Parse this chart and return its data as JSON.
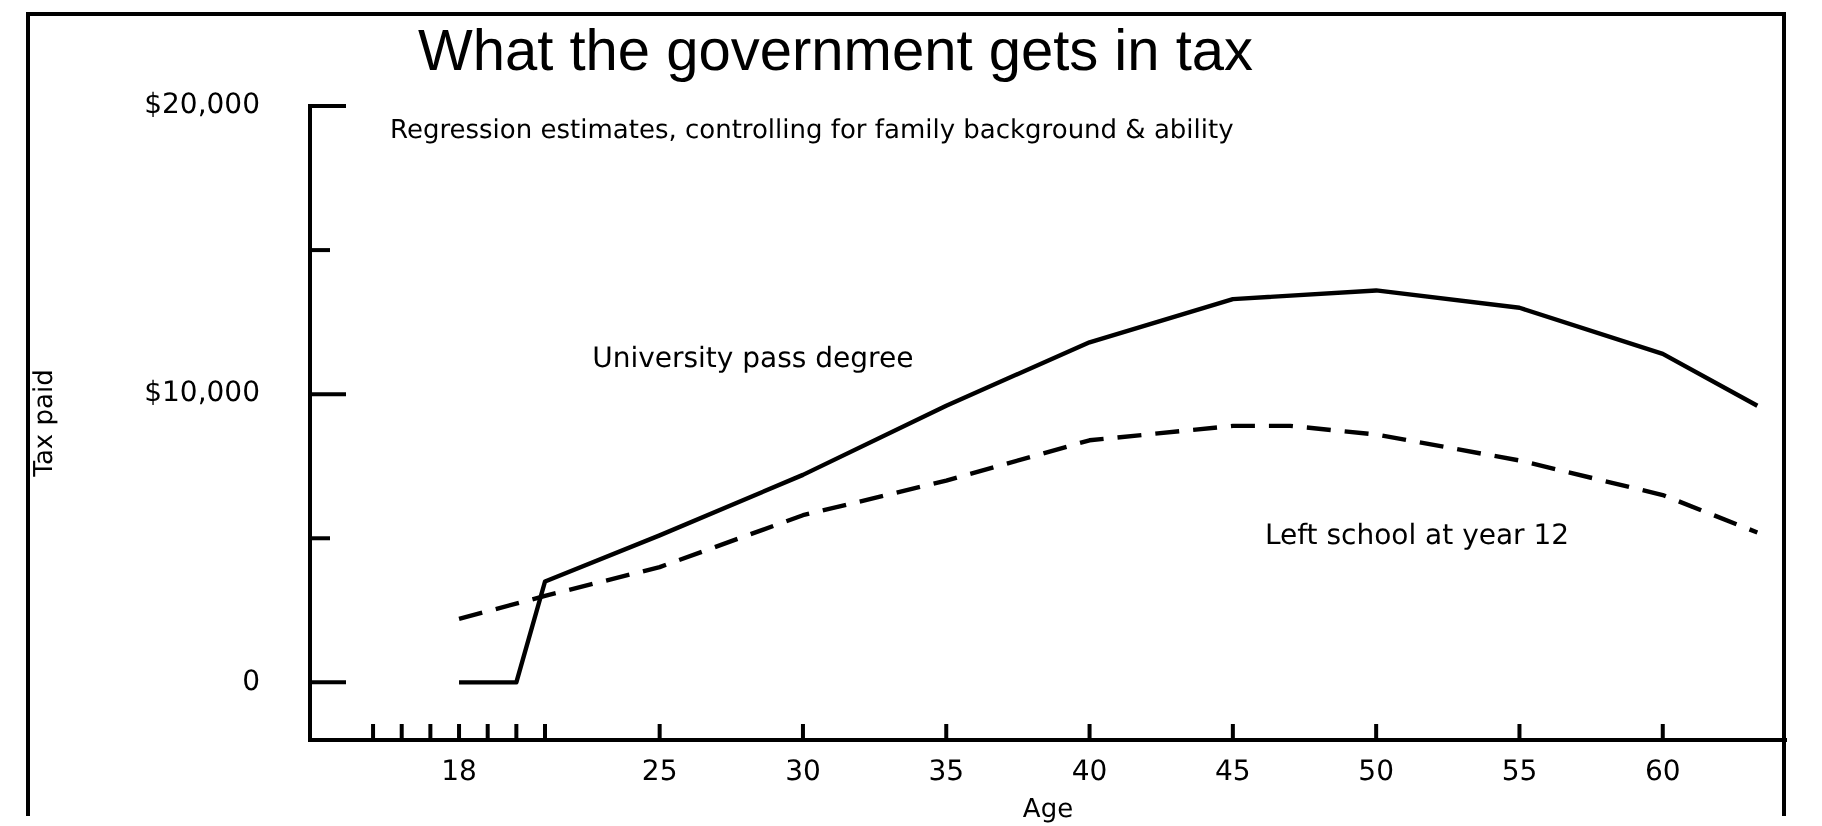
{
  "chart_data": {
    "type": "line",
    "title": "What the government gets in tax",
    "subtitle": "Regression estimates, controlling for family background & ability",
    "xlabel": "Age",
    "ylabel": "Tax paid",
    "xlim": [
      12.8,
      64.3
    ],
    "xticks": [
      {
        "value": 15,
        "label": null
      },
      {
        "value": 16,
        "label": null
      },
      {
        "value": 17,
        "label": null
      },
      18,
      {
        "value": 19,
        "label": null
      },
      {
        "value": 20,
        "label": null
      },
      {
        "value": 21,
        "label": null
      },
      25,
      30,
      35,
      40,
      45,
      50,
      55,
      60
    ],
    "ylim": [
      -2000,
      20000
    ],
    "yticks": [
      0,
      {
        "value": 5000,
        "label": null
      },
      {
        "value": 10000,
        "label": "$10,000"
      },
      {
        "value": 15000,
        "label": null
      },
      {
        "value": 20000,
        "label": "$20,000"
      }
    ],
    "grid": false,
    "legend": false,
    "marker": "none",
    "series": [
      {
        "name": "University pass degree",
        "color": "#000000",
        "line_style": "solid",
        "x": [
          18,
          20,
          21,
          25,
          30,
          35,
          40,
          45,
          50,
          55,
          60,
          63.3
        ],
        "values": [
          0,
          0,
          3500,
          5100,
          7200,
          9600,
          11800,
          13300,
          13600,
          13000,
          11400,
          9600
        ]
      },
      {
        "name": "Left school at year 12",
        "color": "#000000",
        "line_style": "dashed",
        "x": [
          18,
          21,
          25,
          30,
          35,
          40,
          45,
          47,
          50,
          55,
          60,
          63.3
        ],
        "values": [
          2200,
          3000,
          4000,
          5800,
          7000,
          8400,
          8900,
          8900,
          8600,
          7700,
          6500,
          5200
        ]
      }
    ]
  }
}
